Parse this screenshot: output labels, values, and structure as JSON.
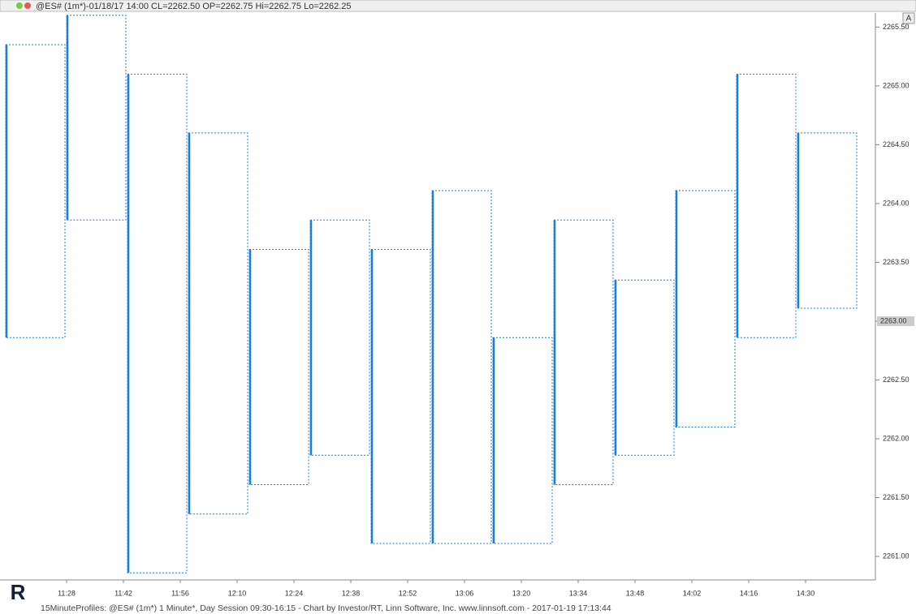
{
  "header": "@ES# (1m*)-01/18/17 14:00 CL=2262.50 OP=2262.75 Hi=2262.75 Lo=2262.25",
  "footer": "15MinuteProfiles: @ES# (1m*) 1 Minute*, Day Session 09:30-16:15 - Chart by Investor/RT, Linn Software, Inc. www.linnsoft.com - 2017-01-19 17:13:44",
  "button": "A",
  "chart_data": {
    "type": "profile-range",
    "color": "#1a7fd6",
    "x": [
      673,
      688,
      703,
      718,
      733,
      748,
      763,
      778,
      793,
      808,
      823,
      838,
      853,
      868
    ],
    "high": [
      2265.35,
      2265.6,
      2265.1,
      2264.6,
      2263.61,
      2263.86,
      2263.61,
      2264.11,
      2262.86,
      2263.86,
      2263.35,
      2264.11,
      2265.1,
      2264.6
    ],
    "low": [
      2262.86,
      2263.86,
      2260.86,
      2261.36,
      2261.61,
      2261.86,
      2261.11,
      2261.11,
      2261.11,
      2261.61,
      2261.86,
      2262.1,
      2262.86,
      2263.11
    ],
    "xlim": [
      671.6,
      887.2
    ],
    "xticks": [
      {
        "value": 688,
        "label": "11:28"
      },
      {
        "value": 702,
        "label": "11:42"
      },
      {
        "value": 716,
        "label": "11:56"
      },
      {
        "value": 730,
        "label": "12:10"
      },
      {
        "value": 744,
        "label": "12:24"
      },
      {
        "value": 758,
        "label": "12:38"
      },
      {
        "value": 772,
        "label": "12:52"
      },
      {
        "value": 786,
        "label": "13:06"
      },
      {
        "value": 800,
        "label": "13:20"
      },
      {
        "value": 814,
        "label": "13:34"
      },
      {
        "value": 828,
        "label": "13:48"
      },
      {
        "value": 842,
        "label": "14:02"
      },
      {
        "value": 856,
        "label": "14:16"
      },
      {
        "value": 870,
        "label": "14:30"
      }
    ],
    "ylim": [
      2260.8,
      2265.62
    ],
    "yticks": [
      {
        "value": 2261.0,
        "label": "2261.00"
      },
      {
        "value": 2261.5,
        "label": "2261.50"
      },
      {
        "value": 2262.0,
        "label": "2262.00"
      },
      {
        "value": 2262.5,
        "label": "2262.50"
      },
      {
        "value": 2263.0,
        "label": "2263.00"
      },
      {
        "value": 2263.5,
        "label": "2263.50"
      },
      {
        "value": 2264.0,
        "label": "2264.00"
      },
      {
        "value": 2264.5,
        "label": "2264.50"
      },
      {
        "value": 2265.0,
        "label": "2265.00"
      },
      {
        "value": 2265.5,
        "label": "2265.50"
      }
    ],
    "last": {
      "value": 2263.0,
      "label": "2263.00"
    }
  }
}
